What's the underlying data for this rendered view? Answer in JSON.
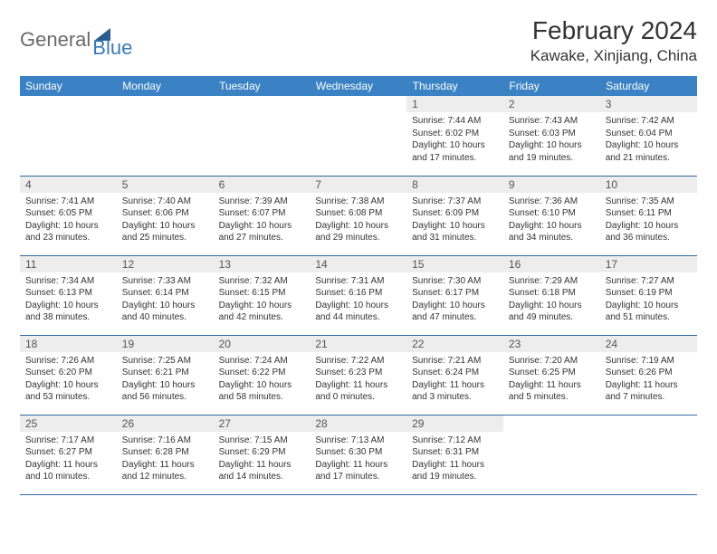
{
  "logo": {
    "text1": "General",
    "text2": "Blue"
  },
  "title": "February 2024",
  "location": "Kawake, Xinjiang, China",
  "colors": {
    "header_bg": "#3a82c4",
    "header_text": "#ffffff",
    "daynum_bg": "#ededed",
    "row_border": "#2f6aa3",
    "body_text": "#333333",
    "logo_gray": "#6a6a6a",
    "logo_blue": "#3a7ab8"
  },
  "day_names": [
    "Sunday",
    "Monday",
    "Tuesday",
    "Wednesday",
    "Thursday",
    "Friday",
    "Saturday"
  ],
  "weeks": [
    [
      null,
      null,
      null,
      null,
      {
        "n": "1",
        "sr": "7:44 AM",
        "ss": "6:02 PM",
        "dl": "10 hours and 17 minutes."
      },
      {
        "n": "2",
        "sr": "7:43 AM",
        "ss": "6:03 PM",
        "dl": "10 hours and 19 minutes."
      },
      {
        "n": "3",
        "sr": "7:42 AM",
        "ss": "6:04 PM",
        "dl": "10 hours and 21 minutes."
      }
    ],
    [
      {
        "n": "4",
        "sr": "7:41 AM",
        "ss": "6:05 PM",
        "dl": "10 hours and 23 minutes."
      },
      {
        "n": "5",
        "sr": "7:40 AM",
        "ss": "6:06 PM",
        "dl": "10 hours and 25 minutes."
      },
      {
        "n": "6",
        "sr": "7:39 AM",
        "ss": "6:07 PM",
        "dl": "10 hours and 27 minutes."
      },
      {
        "n": "7",
        "sr": "7:38 AM",
        "ss": "6:08 PM",
        "dl": "10 hours and 29 minutes."
      },
      {
        "n": "8",
        "sr": "7:37 AM",
        "ss": "6:09 PM",
        "dl": "10 hours and 31 minutes."
      },
      {
        "n": "9",
        "sr": "7:36 AM",
        "ss": "6:10 PM",
        "dl": "10 hours and 34 minutes."
      },
      {
        "n": "10",
        "sr": "7:35 AM",
        "ss": "6:11 PM",
        "dl": "10 hours and 36 minutes."
      }
    ],
    [
      {
        "n": "11",
        "sr": "7:34 AM",
        "ss": "6:13 PM",
        "dl": "10 hours and 38 minutes."
      },
      {
        "n": "12",
        "sr": "7:33 AM",
        "ss": "6:14 PM",
        "dl": "10 hours and 40 minutes."
      },
      {
        "n": "13",
        "sr": "7:32 AM",
        "ss": "6:15 PM",
        "dl": "10 hours and 42 minutes."
      },
      {
        "n": "14",
        "sr": "7:31 AM",
        "ss": "6:16 PM",
        "dl": "10 hours and 44 minutes."
      },
      {
        "n": "15",
        "sr": "7:30 AM",
        "ss": "6:17 PM",
        "dl": "10 hours and 47 minutes."
      },
      {
        "n": "16",
        "sr": "7:29 AM",
        "ss": "6:18 PM",
        "dl": "10 hours and 49 minutes."
      },
      {
        "n": "17",
        "sr": "7:27 AM",
        "ss": "6:19 PM",
        "dl": "10 hours and 51 minutes."
      }
    ],
    [
      {
        "n": "18",
        "sr": "7:26 AM",
        "ss": "6:20 PM",
        "dl": "10 hours and 53 minutes."
      },
      {
        "n": "19",
        "sr": "7:25 AM",
        "ss": "6:21 PM",
        "dl": "10 hours and 56 minutes."
      },
      {
        "n": "20",
        "sr": "7:24 AM",
        "ss": "6:22 PM",
        "dl": "10 hours and 58 minutes."
      },
      {
        "n": "21",
        "sr": "7:22 AM",
        "ss": "6:23 PM",
        "dl": "11 hours and 0 minutes."
      },
      {
        "n": "22",
        "sr": "7:21 AM",
        "ss": "6:24 PM",
        "dl": "11 hours and 3 minutes."
      },
      {
        "n": "23",
        "sr": "7:20 AM",
        "ss": "6:25 PM",
        "dl": "11 hours and 5 minutes."
      },
      {
        "n": "24",
        "sr": "7:19 AM",
        "ss": "6:26 PM",
        "dl": "11 hours and 7 minutes."
      }
    ],
    [
      {
        "n": "25",
        "sr": "7:17 AM",
        "ss": "6:27 PM",
        "dl": "11 hours and 10 minutes."
      },
      {
        "n": "26",
        "sr": "7:16 AM",
        "ss": "6:28 PM",
        "dl": "11 hours and 12 minutes."
      },
      {
        "n": "27",
        "sr": "7:15 AM",
        "ss": "6:29 PM",
        "dl": "11 hours and 14 minutes."
      },
      {
        "n": "28",
        "sr": "7:13 AM",
        "ss": "6:30 PM",
        "dl": "11 hours and 17 minutes."
      },
      {
        "n": "29",
        "sr": "7:12 AM",
        "ss": "6:31 PM",
        "dl": "11 hours and 19 minutes."
      },
      null,
      null
    ]
  ],
  "labels": {
    "sunrise": "Sunrise: ",
    "sunset": "Sunset: ",
    "daylight": "Daylight: "
  }
}
